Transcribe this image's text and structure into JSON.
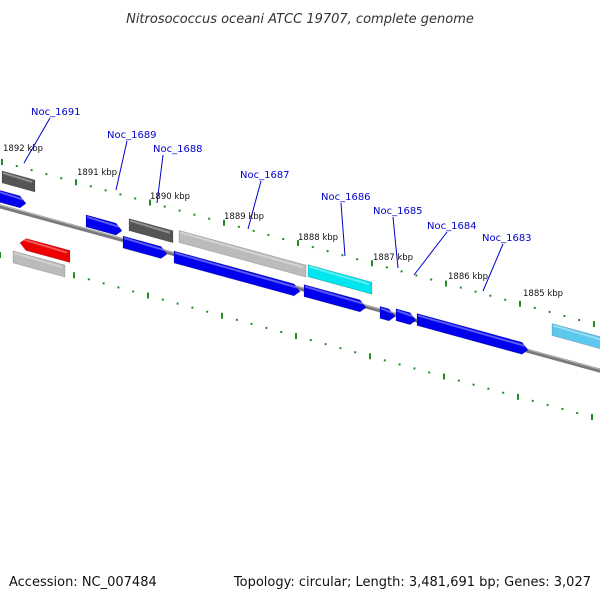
{
  "title": "Nitrosococcus oceani ATCC 19707, complete genome",
  "footer": {
    "accession": "Accession: NC_007484",
    "summary": "Topology: circular; Length: 3,481,691 bp; Genes: 3,027"
  },
  "colors": {
    "backbone": "#808080",
    "tick": "#228b22",
    "label_line": "#0000cc",
    "label_text": "#0000cc",
    "blue": "#0000ee",
    "dark_gray": "#555555",
    "light_gray": "#bbbbbb",
    "cyan": "#00e5ee",
    "sky": "#5cc8ee",
    "red": "#ee0000"
  },
  "kbp_labels": [
    "1892 kbp",
    "1891 kbp",
    "1890 kbp",
    "1889 kbp",
    "1888 kbp",
    "1887 kbp",
    "1886 kbp",
    "1885 kbp"
  ],
  "gene_labels": [
    "Noc_1691",
    "Noc_1689",
    "Noc_1688",
    "Noc_1687",
    "Noc_1686",
    "Noc_1685",
    "Noc_1684",
    "Noc_1683"
  ]
}
